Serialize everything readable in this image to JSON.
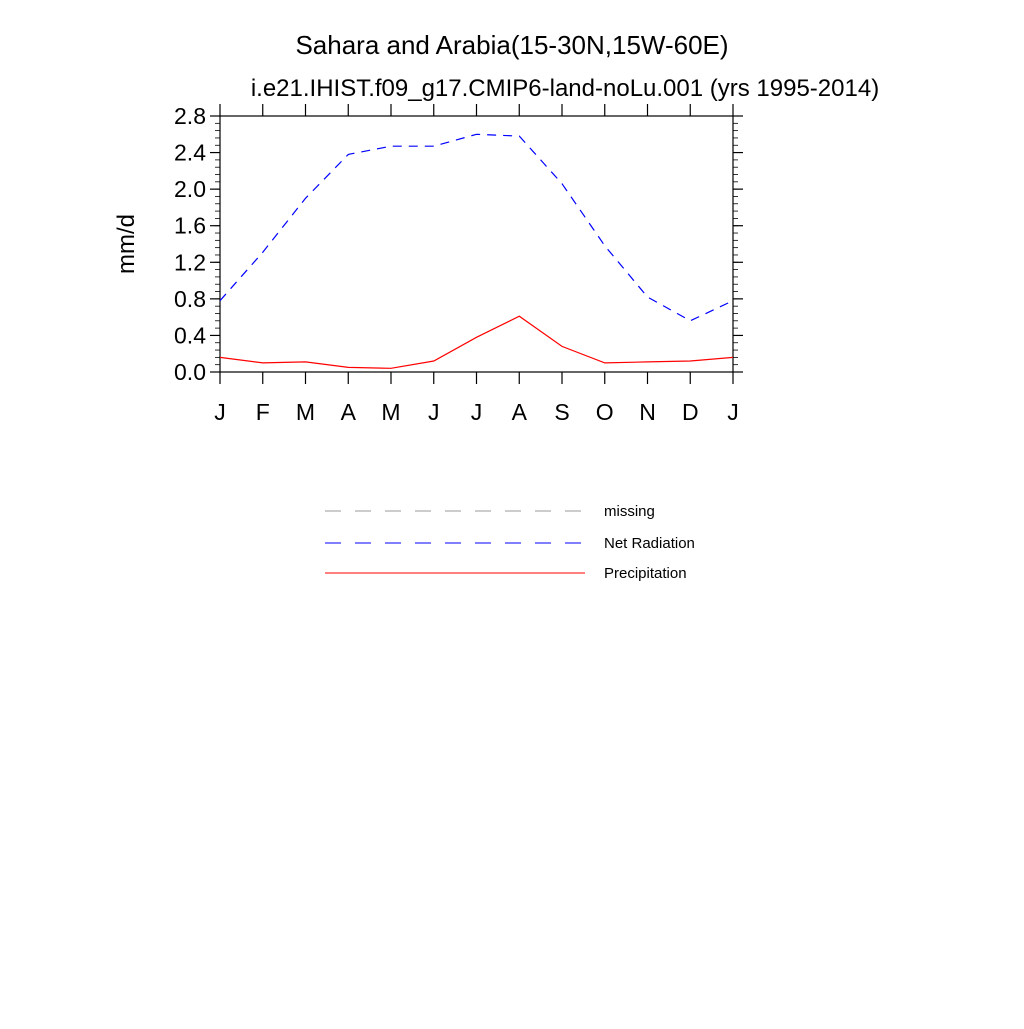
{
  "chart_data": {
    "type": "line",
    "title": "Sahara and Arabia(15-30N,15W-60E)",
    "subtitle": "i.e21.IHIST.f09_g17.CMIP6-land-noLu.001 (yrs 1995-2014)",
    "ylabel": "mm/d",
    "xlabel": "",
    "categories": [
      "J",
      "F",
      "M",
      "A",
      "M",
      "J",
      "J",
      "A",
      "S",
      "O",
      "N",
      "D",
      "J"
    ],
    "ylim": [
      0.0,
      2.8
    ],
    "yticks": [
      "0.0",
      "0.4",
      "0.8",
      "1.2",
      "1.6",
      "2.0",
      "2.4",
      "2.8"
    ],
    "grid": false,
    "legend_position": "bottom",
    "series": [
      {
        "name": "Net Radiation",
        "color": "#0000ff",
        "style": "dashed",
        "values": [
          0.78,
          1.31,
          1.9,
          2.38,
          2.47,
          2.47,
          2.6,
          2.58,
          2.06,
          1.38,
          0.82,
          0.56,
          0.78
        ]
      },
      {
        "name": "Precipitation",
        "color": "#ff0000",
        "style": "solid",
        "values": [
          0.16,
          0.1,
          0.11,
          0.05,
          0.04,
          0.12,
          0.38,
          0.61,
          0.28,
          0.1,
          0.11,
          0.12,
          0.16
        ]
      }
    ],
    "legend": [
      {
        "label": "missing",
        "color": "#999999",
        "style": "dashed"
      },
      {
        "label": "Net Radiation",
        "color": "#0000ff",
        "style": "dashed"
      },
      {
        "label": "Precipitation",
        "color": "#ff0000",
        "style": "solid"
      }
    ]
  }
}
